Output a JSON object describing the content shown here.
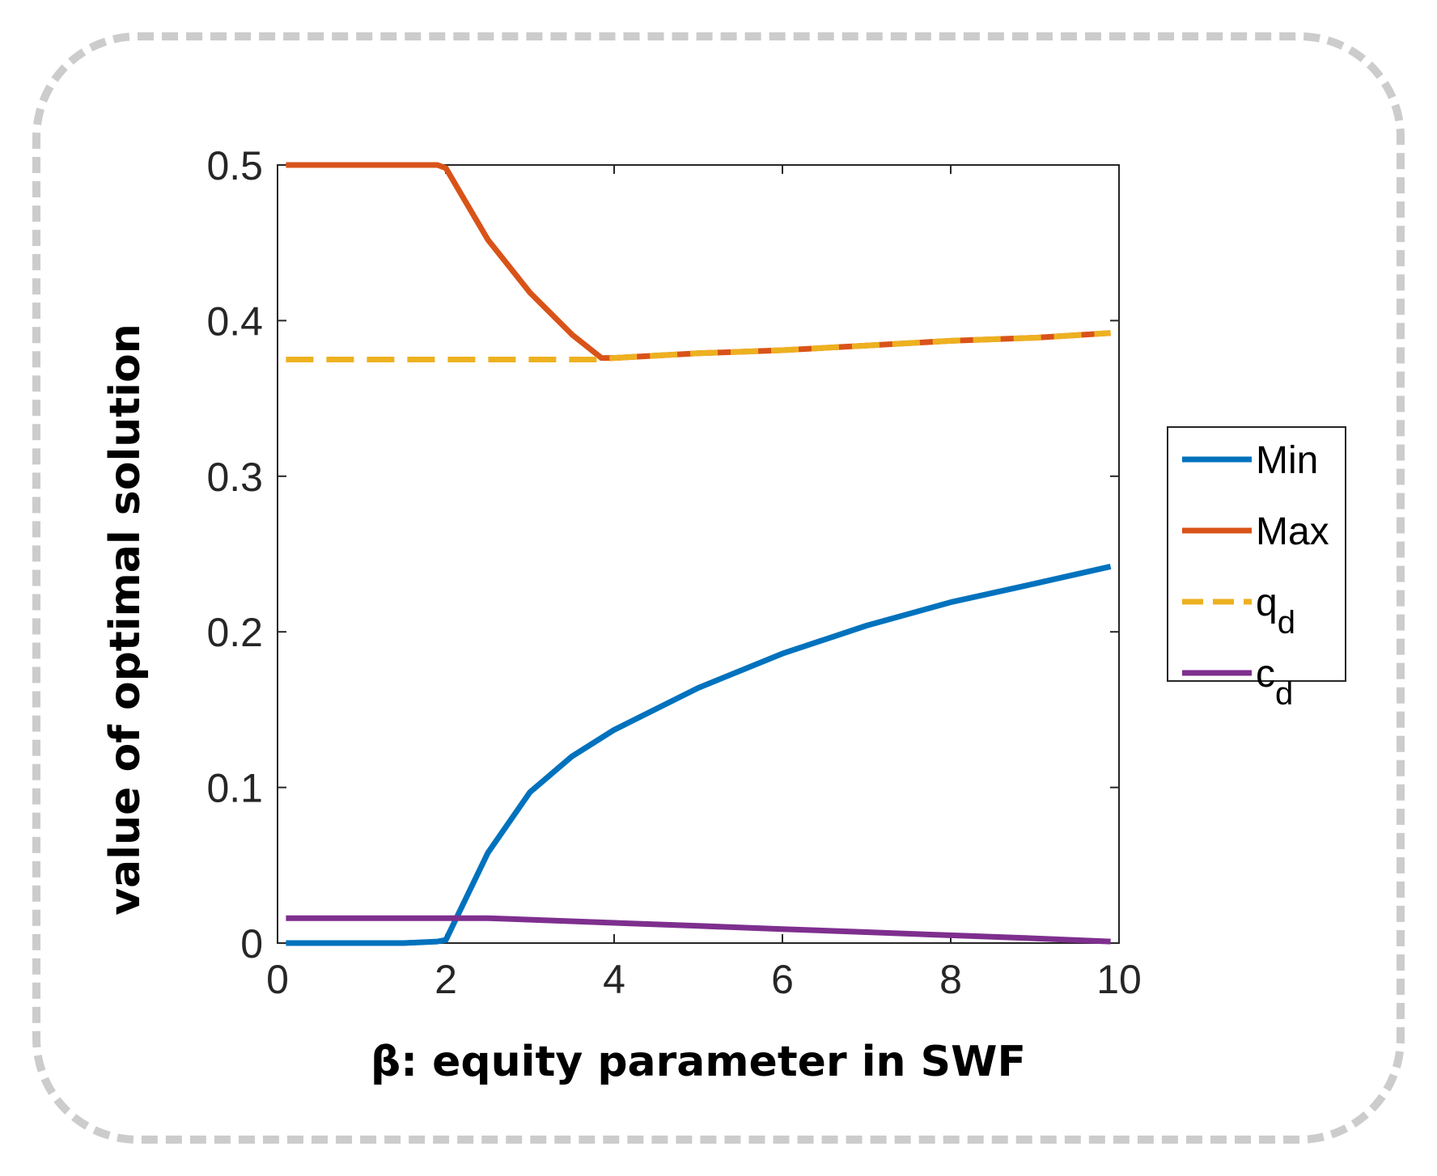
{
  "chart_data": {
    "type": "line",
    "xlabel": "β: equity parameter in SWF",
    "ylabel": "value of optimal solution",
    "xlim": [
      0,
      10
    ],
    "ylim": [
      0,
      0.5
    ],
    "x_ticks": [
      "0",
      "2",
      "4",
      "6",
      "8",
      "10"
    ],
    "y_ticks": [
      "0",
      "0.1",
      "0.2",
      "0.3",
      "0.4",
      "0.5"
    ],
    "grid": false,
    "legend_position": "right",
    "series": [
      {
        "name": "Min",
        "color": "#0072BD",
        "style": "solid",
        "x": [
          0.1,
          0.5,
          1.0,
          1.5,
          1.9,
          2.0,
          2.5,
          3.0,
          3.5,
          4.0,
          5.0,
          6.0,
          7.0,
          8.0,
          9.0,
          9.9
        ],
        "y": [
          0.0,
          0.0,
          0.0,
          0.0,
          0.001,
          0.002,
          0.058,
          0.097,
          0.12,
          0.137,
          0.164,
          0.186,
          0.204,
          0.219,
          0.231,
          0.242
        ]
      },
      {
        "name": "Max",
        "color": "#D95319",
        "style": "solid",
        "x": [
          0.1,
          0.5,
          1.0,
          1.5,
          1.9,
          2.0,
          2.5,
          3.0,
          3.5,
          3.85,
          4.0,
          5.0,
          6.0,
          7.0,
          8.0,
          9.0,
          9.9
        ],
        "y": [
          0.5,
          0.5,
          0.5,
          0.5,
          0.5,
          0.498,
          0.452,
          0.418,
          0.391,
          0.376,
          0.376,
          0.379,
          0.381,
          0.384,
          0.387,
          0.389,
          0.392
        ]
      },
      {
        "name": "q",
        "name_subscript": "d",
        "color": "#EDB120",
        "style": "dashed",
        "x": [
          0.1,
          1.0,
          2.0,
          3.0,
          3.85,
          4.0,
          5.0,
          6.0,
          7.0,
          8.0,
          9.0,
          9.9
        ],
        "y": [
          0.375,
          0.375,
          0.375,
          0.375,
          0.375,
          0.376,
          0.379,
          0.381,
          0.384,
          0.387,
          0.389,
          0.392
        ]
      },
      {
        "name": "c",
        "name_subscript": "d",
        "color": "#7E2F8E",
        "style": "solid",
        "x": [
          0.1,
          1.0,
          2.0,
          2.5,
          3.0,
          4.0,
          5.0,
          6.0,
          7.0,
          8.0,
          9.0,
          9.9
        ],
        "y": [
          0.016,
          0.016,
          0.016,
          0.016,
          0.015,
          0.013,
          0.011,
          0.009,
          0.007,
          0.005,
          0.003,
          0.001
        ]
      }
    ]
  }
}
